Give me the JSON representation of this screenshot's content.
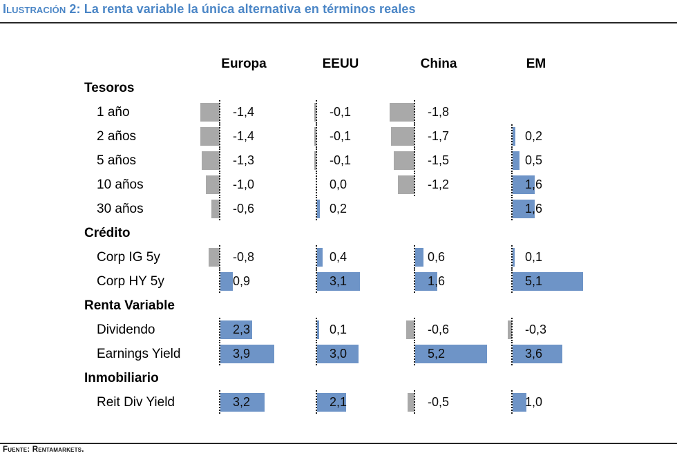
{
  "figure": {
    "title_prefix": "Ilustración 2:",
    "title_text": " La renta variable la única alternativa en términos reales",
    "source": "Fuente: Rentamarkets."
  },
  "colors": {
    "title": "#4b86c6",
    "positive_bar": "#6e94c7",
    "negative_bar": "#a9a9a9",
    "rule": "#262626",
    "axis": "#1a1a1a"
  },
  "chart_data": {
    "type": "bar",
    "orientation": "horizontal",
    "decimal_separator": ",",
    "legend": "none",
    "columns": [
      "Europa",
      "EEUU",
      "China",
      "EM"
    ],
    "sections": [
      {
        "label": "Tesoros",
        "rows": [
          {
            "label": "1 año",
            "values": [
              -1.4,
              -0.1,
              -1.8,
              null
            ],
            "display": [
              "-1,4",
              "-0,1",
              "-1,8",
              ""
            ]
          },
          {
            "label": "2 años",
            "values": [
              -1.4,
              -0.1,
              -1.7,
              0.2
            ],
            "display": [
              "-1,4",
              "-0,1",
              "-1,7",
              "0,2"
            ]
          },
          {
            "label": "5 años",
            "values": [
              -1.3,
              -0.1,
              -1.5,
              0.5
            ],
            "display": [
              "-1,3",
              "-0,1",
              "-1,5",
              "0,5"
            ]
          },
          {
            "label": "10 años",
            "values": [
              -1.0,
              0.0,
              -1.2,
              1.6
            ],
            "display": [
              "-1,0",
              "0,0",
              "-1,2",
              "1,6"
            ]
          },
          {
            "label": "30 años",
            "values": [
              -0.6,
              0.2,
              null,
              1.6
            ],
            "display": [
              "-0,6",
              "0,2",
              "",
              "1,6"
            ]
          }
        ]
      },
      {
        "label": "Crédito",
        "rows": [
          {
            "label": "Corp IG 5y",
            "values": [
              -0.8,
              0.4,
              0.6,
              0.1
            ],
            "display": [
              "-0,8",
              "0,4",
              "0,6",
              "0,1"
            ]
          },
          {
            "label": "Corp HY 5y",
            "values": [
              0.9,
              3.1,
              1.6,
              5.1
            ],
            "display": [
              "0,9",
              "3,1",
              "1,6",
              "5,1"
            ]
          }
        ]
      },
      {
        "label": "Renta Variable",
        "rows": [
          {
            "label": "Dividendo",
            "values": [
              2.3,
              0.1,
              -0.6,
              -0.3
            ],
            "display": [
              "2,3",
              "0,1",
              "-0,6",
              "-0,3"
            ]
          },
          {
            "label": "Earnings Yield",
            "values": [
              3.9,
              3.0,
              5.2,
              3.6
            ],
            "display": [
              "3,9",
              "3,0",
              "5,2",
              "3,6"
            ]
          }
        ]
      },
      {
        "label": "Inmobiliario",
        "rows": [
          {
            "label": "Reit Div Yield",
            "values": [
              3.2,
              2.1,
              -0.5,
              1.0
            ],
            "display": [
              "3,2",
              "2,1",
              "-0,5",
              "1,0"
            ]
          }
        ]
      }
    ]
  }
}
